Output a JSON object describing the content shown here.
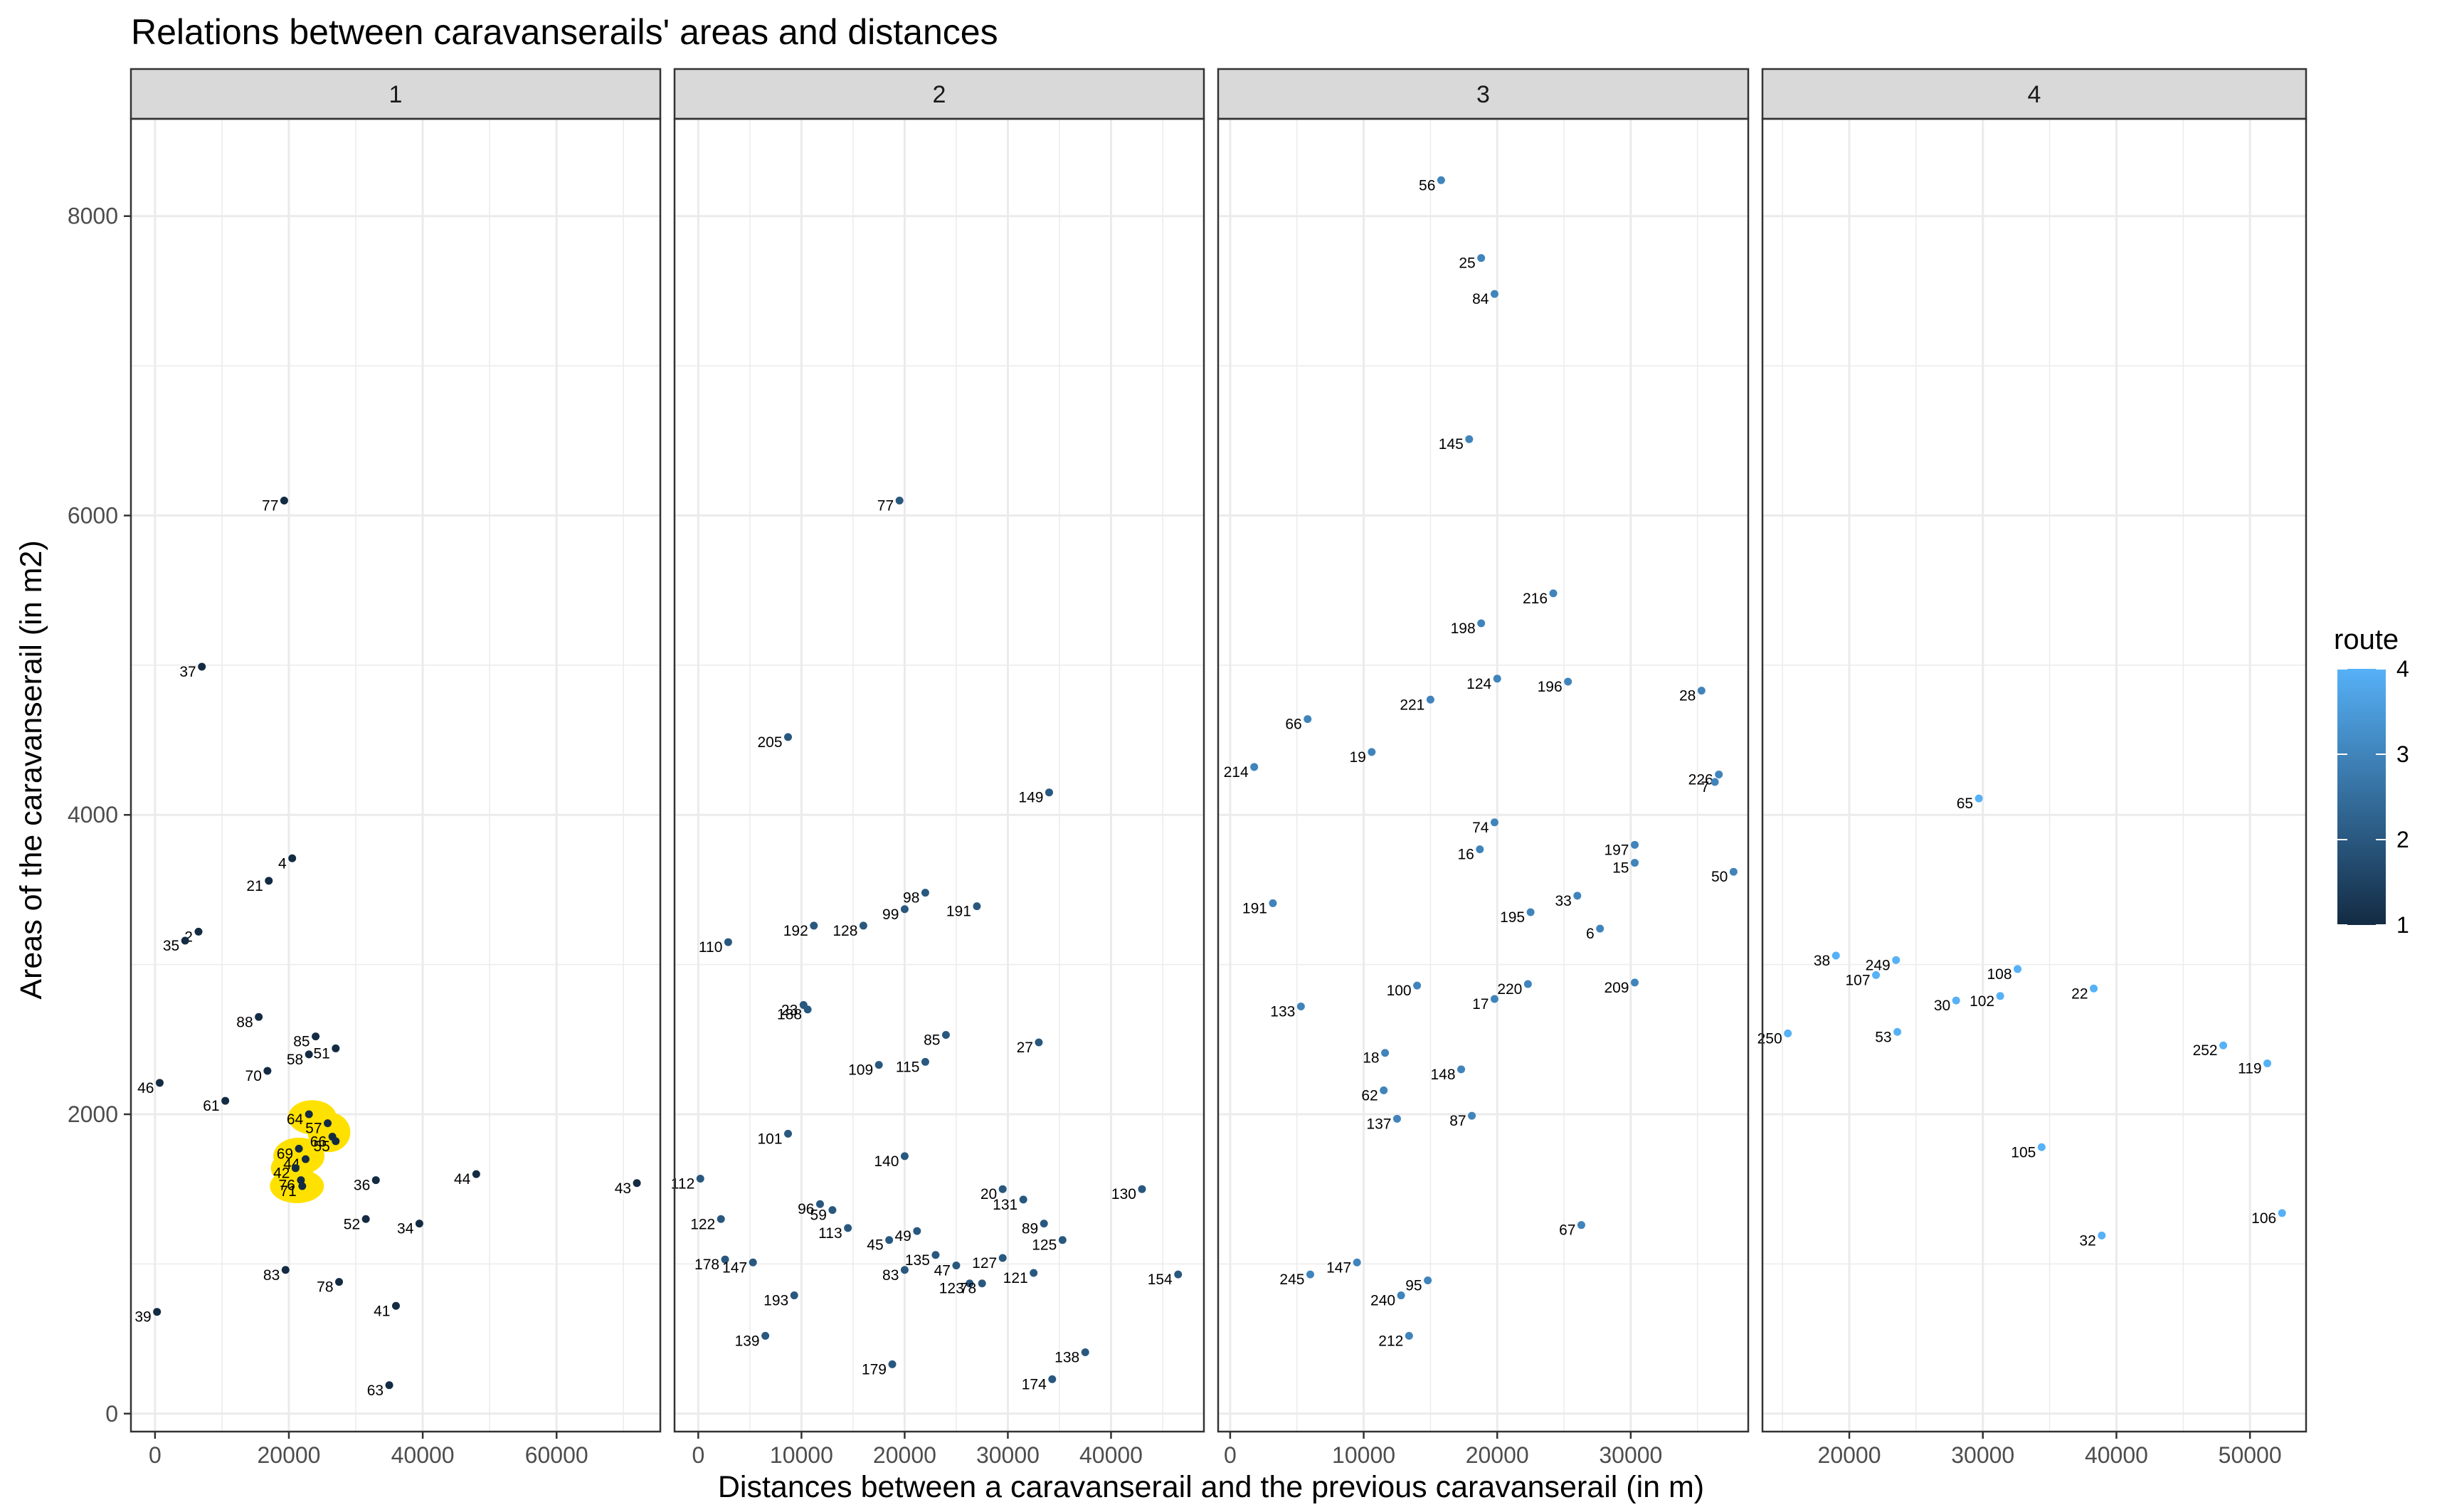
{
  "chart_data": {
    "type": "scatter",
    "title": "Relations between caravanserails' areas and distances",
    "xlabel": "Distances between a caravanserail and the previous caravanserail (in m)",
    "ylabel": "Areas of the caravanserail (in m2)",
    "ylim": [
      -120,
      8650
    ],
    "yticks": [
      0,
      2000,
      4000,
      6000,
      8000
    ],
    "grid": true,
    "facet_by": "route",
    "legend": {
      "title": "route",
      "position": "right",
      "ticks": [
        1,
        2,
        3,
        4
      ],
      "colors": [
        "#132b43",
        "#56b1f7"
      ]
    },
    "panels": [
      {
        "strip": "1",
        "route": 1,
        "xlim": [
          -3600,
          75500
        ],
        "xticks": [
          0,
          20000,
          40000,
          60000
        ],
        "points": [
          {
            "label": "77",
            "x": 19300,
            "y": 6100
          },
          {
            "label": "37",
            "x": 7000,
            "y": 4990
          },
          {
            "label": "4",
            "x": 20500,
            "y": 3710
          },
          {
            "label": "21",
            "x": 17000,
            "y": 3560
          },
          {
            "label": "2",
            "x": 6500,
            "y": 3220
          },
          {
            "label": "35",
            "x": 4500,
            "y": 3160
          },
          {
            "label": "88",
            "x": 15500,
            "y": 2650
          },
          {
            "label": "85",
            "x": 24000,
            "y": 2520
          },
          {
            "label": "51",
            "x": 27000,
            "y": 2440
          },
          {
            "label": "58",
            "x": 23000,
            "y": 2400
          },
          {
            "label": "70",
            "x": 16800,
            "y": 2290
          },
          {
            "label": "46",
            "x": 700,
            "y": 2210
          },
          {
            "label": "61",
            "x": 10500,
            "y": 2090
          },
          {
            "label": "64",
            "x": 23000,
            "y": 2000
          },
          {
            "label": "57",
            "x": 25800,
            "y": 1940
          },
          {
            "label": "66",
            "x": 26500,
            "y": 1850
          },
          {
            "label": "55",
            "x": 27000,
            "y": 1820
          },
          {
            "label": "69",
            "x": 21500,
            "y": 1770
          },
          {
            "label": "44",
            "x": 22500,
            "y": 1700
          },
          {
            "label": "42",
            "x": 21000,
            "y": 1640
          },
          {
            "label": "76",
            "x": 21800,
            "y": 1560
          },
          {
            "label": "71",
            "x": 22000,
            "y": 1520
          },
          {
            "label": "36",
            "x": 33000,
            "y": 1560
          },
          {
            "label": "44",
            "x": 48000,
            "y": 1600
          },
          {
            "label": "43",
            "x": 72000,
            "y": 1540
          },
          {
            "label": "52",
            "x": 31500,
            "y": 1300
          },
          {
            "label": "34",
            "x": 39500,
            "y": 1270
          },
          {
            "label": "83",
            "x": 19500,
            "y": 960
          },
          {
            "label": "78",
            "x": 27500,
            "y": 880
          },
          {
            "label": "41",
            "x": 36000,
            "y": 720
          },
          {
            "label": "39",
            "x": 300,
            "y": 680
          },
          {
            "label": "63",
            "x": 35000,
            "y": 190
          }
        ]
      },
      {
        "strip": "2",
        "route": 2,
        "xlim": [
          -2300,
          49000
        ],
        "xticks": [
          0,
          10000,
          20000,
          30000,
          40000
        ],
        "points": [
          {
            "label": "77",
            "x": 19500,
            "y": 6100
          },
          {
            "label": "205",
            "x": 8700,
            "y": 4520
          },
          {
            "label": "149",
            "x": 34000,
            "y": 4150
          },
          {
            "label": "98",
            "x": 22000,
            "y": 3480
          },
          {
            "label": "191",
            "x": 27000,
            "y": 3390
          },
          {
            "label": "99",
            "x": 20000,
            "y": 3370
          },
          {
            "label": "128",
            "x": 16000,
            "y": 3260
          },
          {
            "label": "192",
            "x": 11200,
            "y": 3260
          },
          {
            "label": "110",
            "x": 2900,
            "y": 3150
          },
          {
            "label": "23",
            "x": 10200,
            "y": 2730
          },
          {
            "label": "188",
            "x": 10600,
            "y": 2700
          },
          {
            "label": "85",
            "x": 24000,
            "y": 2530
          },
          {
            "label": "27",
            "x": 33000,
            "y": 2480
          },
          {
            "label": "109",
            "x": 17500,
            "y": 2330
          },
          {
            "label": "115",
            "x": 22000,
            "y": 2350
          },
          {
            "label": "101",
            "x": 8700,
            "y": 1870
          },
          {
            "label": "140",
            "x": 20000,
            "y": 1720
          },
          {
            "label": "112",
            "x": 200,
            "y": 1570
          },
          {
            "label": "130",
            "x": 43000,
            "y": 1500
          },
          {
            "label": "20",
            "x": 29500,
            "y": 1500
          },
          {
            "label": "131",
            "x": 31500,
            "y": 1430
          },
          {
            "label": "96",
            "x": 11800,
            "y": 1400
          },
          {
            "label": "59",
            "x": 13000,
            "y": 1360
          },
          {
            "label": "122",
            "x": 2200,
            "y": 1300
          },
          {
            "label": "113",
            "x": 14500,
            "y": 1240
          },
          {
            "label": "89",
            "x": 33500,
            "y": 1270
          },
          {
            "label": "49",
            "x": 21200,
            "y": 1220
          },
          {
            "label": "45",
            "x": 18500,
            "y": 1160
          },
          {
            "label": "125",
            "x": 35300,
            "y": 1160
          },
          {
            "label": "135",
            "x": 23000,
            "y": 1060
          },
          {
            "label": "127",
            "x": 29500,
            "y": 1040
          },
          {
            "label": "178",
            "x": 2600,
            "y": 1030
          },
          {
            "label": "147",
            "x": 5300,
            "y": 1010
          },
          {
            "label": "47",
            "x": 25000,
            "y": 990
          },
          {
            "label": "83",
            "x": 20000,
            "y": 960
          },
          {
            "label": "121",
            "x": 32500,
            "y": 940
          },
          {
            "label": "154",
            "x": 46500,
            "y": 930
          },
          {
            "label": "123",
            "x": 26300,
            "y": 870
          },
          {
            "label": "78",
            "x": 27500,
            "y": 870
          },
          {
            "label": "193",
            "x": 9300,
            "y": 790
          },
          {
            "label": "139",
            "x": 6500,
            "y": 520
          },
          {
            "label": "138",
            "x": 37500,
            "y": 410
          },
          {
            "label": "179",
            "x": 18800,
            "y": 330
          },
          {
            "label": "174",
            "x": 34300,
            "y": 230
          }
        ]
      },
      {
        "strip": "3",
        "route": 3,
        "xlim": [
          -900,
          38800
        ],
        "xticks": [
          0,
          10000,
          20000,
          30000
        ],
        "points": [
          {
            "label": "56",
            "x": 15800,
            "y": 8240
          },
          {
            "label": "25",
            "x": 18800,
            "y": 7720
          },
          {
            "label": "84",
            "x": 19800,
            "y": 7480
          },
          {
            "label": "145",
            "x": 17900,
            "y": 6510
          },
          {
            "label": "216",
            "x": 24200,
            "y": 5480
          },
          {
            "label": "198",
            "x": 18800,
            "y": 5280
          },
          {
            "label": "124",
            "x": 20000,
            "y": 4910
          },
          {
            "label": "196",
            "x": 25300,
            "y": 4890
          },
          {
            "label": "28",
            "x": 35300,
            "y": 4830
          },
          {
            "label": "221",
            "x": 15000,
            "y": 4770
          },
          {
            "label": "66",
            "x": 5800,
            "y": 4640
          },
          {
            "label": "19",
            "x": 10600,
            "y": 4420
          },
          {
            "label": "214",
            "x": 1800,
            "y": 4320
          },
          {
            "label": "226",
            "x": 36600,
            "y": 4270
          },
          {
            "label": "7",
            "x": 36300,
            "y": 4220
          },
          {
            "label": "74",
            "x": 19800,
            "y": 3950
          },
          {
            "label": "197",
            "x": 30300,
            "y": 3800
          },
          {
            "label": "16",
            "x": 18700,
            "y": 3770
          },
          {
            "label": "15",
            "x": 30300,
            "y": 3680
          },
          {
            "label": "50",
            "x": 37700,
            "y": 3620
          },
          {
            "label": "33",
            "x": 26000,
            "y": 3460
          },
          {
            "label": "191",
            "x": 3200,
            "y": 3410
          },
          {
            "label": "195",
            "x": 22500,
            "y": 3350
          },
          {
            "label": "6",
            "x": 27700,
            "y": 3240
          },
          {
            "label": "209",
            "x": 30300,
            "y": 2880
          },
          {
            "label": "220",
            "x": 22300,
            "y": 2870
          },
          {
            "label": "100",
            "x": 14000,
            "y": 2860
          },
          {
            "label": "17",
            "x": 19800,
            "y": 2770
          },
          {
            "label": "133",
            "x": 5300,
            "y": 2720
          },
          {
            "label": "18",
            "x": 11600,
            "y": 2410
          },
          {
            "label": "148",
            "x": 17300,
            "y": 2300
          },
          {
            "label": "62",
            "x": 11500,
            "y": 2160
          },
          {
            "label": "87",
            "x": 18100,
            "y": 1990
          },
          {
            "label": "137",
            "x": 12500,
            "y": 1970
          },
          {
            "label": "67",
            "x": 26300,
            "y": 1260
          },
          {
            "label": "147",
            "x": 9500,
            "y": 1010
          },
          {
            "label": "245",
            "x": 6000,
            "y": 930
          },
          {
            "label": "95",
            "x": 14800,
            "y": 890
          },
          {
            "label": "240",
            "x": 12800,
            "y": 790
          },
          {
            "label": "212",
            "x": 13400,
            "y": 520
          }
        ]
      },
      {
        "strip": "4",
        "route": 4,
        "xlim": [
          13500,
          54200
        ],
        "xticks": [
          20000,
          30000,
          40000,
          50000
        ],
        "points": [
          {
            "label": "65",
            "x": 29700,
            "y": 4110
          },
          {
            "label": "38",
            "x": 19000,
            "y": 3060
          },
          {
            "label": "249",
            "x": 23500,
            "y": 3030
          },
          {
            "label": "108",
            "x": 32600,
            "y": 2970
          },
          {
            "label": "107",
            "x": 22000,
            "y": 2930
          },
          {
            "label": "22",
            "x": 38300,
            "y": 2840
          },
          {
            "label": "102",
            "x": 31300,
            "y": 2790
          },
          {
            "label": "30",
            "x": 28000,
            "y": 2760
          },
          {
            "label": "250",
            "x": 15400,
            "y": 2540
          },
          {
            "label": "53",
            "x": 23600,
            "y": 2550
          },
          {
            "label": "252",
            "x": 48000,
            "y": 2460
          },
          {
            "label": "119",
            "x": 51300,
            "y": 2340
          },
          {
            "label": "105",
            "x": 34400,
            "y": 1780
          },
          {
            "label": "106",
            "x": 52400,
            "y": 1340
          },
          {
            "label": "32",
            "x": 38900,
            "y": 1190
          }
        ]
      }
    ]
  }
}
